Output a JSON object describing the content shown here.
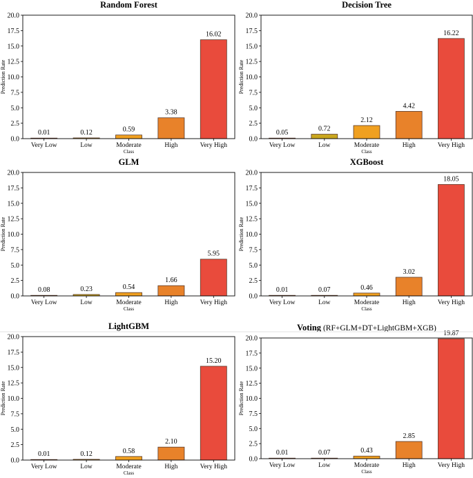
{
  "figure": {
    "colors": {
      "Very Low": "#2e8b3c",
      "Low": "#c9a61e",
      "Moderate": "#f0a020",
      "High": "#e8822a",
      "Very High": "#e94b3c",
      "edge": "#5a3a2a"
    }
  },
  "chart_data": [
    {
      "type": "bar",
      "title": "Random Forest",
      "title_suffix": "",
      "categories": [
        "Very Low",
        "Low",
        "Moderate",
        "High",
        "Very High"
      ],
      "values": [
        0.01,
        0.12,
        0.59,
        3.38,
        16.02
      ],
      "value_labels": [
        "0.01",
        "0.12",
        "0.59",
        "3.38",
        "16.02"
      ],
      "xlabel": "Class",
      "ylabel": "Prediction Rate",
      "ylim": [
        0,
        20
      ],
      "yticks": [
        "0.0",
        "2.5",
        "5.0",
        "7.5",
        "10.0",
        "12.5",
        "15.0",
        "17.5",
        "20.0"
      ],
      "grid": false
    },
    {
      "type": "bar",
      "title": "Decision Tree",
      "title_suffix": "",
      "categories": [
        "Very Low",
        "Low",
        "Moderate",
        "High",
        "Very High"
      ],
      "values": [
        0.05,
        0.72,
        2.12,
        4.42,
        16.22
      ],
      "value_labels": [
        "0.05",
        "0.72",
        "2.12",
        "4.42",
        "16.22"
      ],
      "xlabel": "Class",
      "ylabel": "Prediction Rate",
      "ylim": [
        0,
        20
      ],
      "yticks": [
        "0.0",
        "2.5",
        "5.0",
        "7.5",
        "10.0",
        "12.5",
        "15.0",
        "17.5",
        "20.0"
      ],
      "grid": false
    },
    {
      "type": "bar",
      "title": "GLM",
      "title_suffix": "",
      "categories": [
        "Very Low",
        "Low",
        "Moderate",
        "High",
        "Very High"
      ],
      "values": [
        0.08,
        0.23,
        0.54,
        1.66,
        5.95
      ],
      "value_labels": [
        "0.08",
        "0.23",
        "0.54",
        "1.66",
        "5.95"
      ],
      "xlabel": "Class",
      "ylabel": "Prediction Rate",
      "ylim": [
        0,
        20
      ],
      "yticks": [
        "0.0",
        "2.5",
        "5.0",
        "7.5",
        "10.0",
        "12.5",
        "15.0",
        "17.5",
        "20.0"
      ],
      "grid": false
    },
    {
      "type": "bar",
      "title": "XGBoost",
      "title_suffix": "",
      "categories": [
        "Very Low",
        "Low",
        "Moderate",
        "High",
        "Very High"
      ],
      "values": [
        0.01,
        0.07,
        0.46,
        3.02,
        18.05
      ],
      "value_labels": [
        "0.01",
        "0.07",
        "0.46",
        "3.02",
        "18.05"
      ],
      "xlabel": "Class",
      "ylabel": "Prediction Rate",
      "ylim": [
        0,
        20
      ],
      "yticks": [
        "0.0",
        "2.5",
        "5.0",
        "7.5",
        "10.0",
        "12.5",
        "15.0",
        "17.5",
        "20.0"
      ],
      "grid": false
    },
    {
      "type": "bar",
      "title": "LightGBM",
      "title_suffix": "",
      "categories": [
        "Very Low",
        "Low",
        "Moderate",
        "High",
        "Very High"
      ],
      "values": [
        0.01,
        0.12,
        0.58,
        2.1,
        15.2
      ],
      "value_labels": [
        "0.01",
        "0.12",
        "0.58",
        "2.10",
        "15.20"
      ],
      "xlabel": "Class",
      "ylabel": "Prediction Rate",
      "ylim": [
        0,
        20
      ],
      "yticks": [
        "0.0",
        "2.5",
        "5.0",
        "7.5",
        "10.0",
        "12.5",
        "15.0",
        "17.5",
        "20.0"
      ],
      "grid": false
    },
    {
      "type": "bar",
      "title": "Voting",
      "title_suffix": "(RF+GLM+DT+LightGBM+XGB)",
      "categories": [
        "Very Low",
        "Low",
        "Moderate",
        "High",
        "Very High"
      ],
      "values": [
        0.01,
        0.07,
        0.43,
        2.85,
        19.87
      ],
      "value_labels": [
        "0.01",
        "0.07",
        "0.43",
        "2.85",
        "19.87"
      ],
      "xlabel": "Class",
      "ylabel": "Prediction Rate",
      "ylim": [
        0,
        20
      ],
      "yticks": [
        "0.0",
        "2.5",
        "5.0",
        "7.5",
        "10.0",
        "12.5",
        "15.0",
        "17.5",
        "20.0"
      ],
      "grid": false
    }
  ]
}
